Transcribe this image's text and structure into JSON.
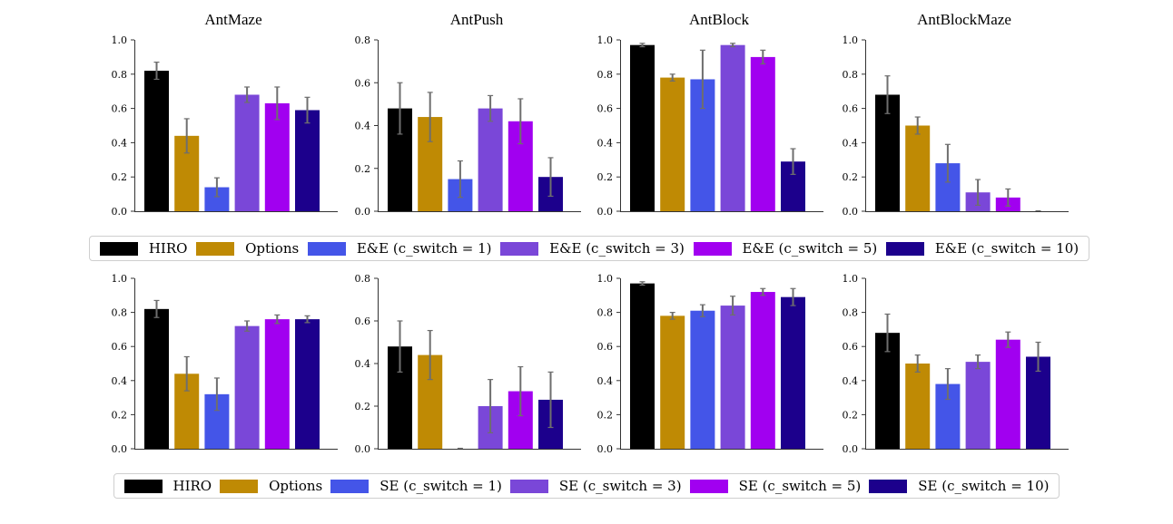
{
  "colors": {
    "HIRO": "#000000",
    "Options": "#bf8a04",
    "c1": "#4455e8",
    "c3": "#7a47d8",
    "c5": "#a100f0",
    "c10": "#1c008c",
    "axis": "#333333",
    "errorbar": "#6e6e6e",
    "legend_border": "#cfcfcf"
  },
  "legends": {
    "top": [
      {
        "label": "HIRO",
        "color_key": "HIRO"
      },
      {
        "label": "Options",
        "color_key": "Options"
      },
      {
        "label": "E&E (c_switch = 1)",
        "color_key": "c1"
      },
      {
        "label": "E&E (c_switch = 3)",
        "color_key": "c3"
      },
      {
        "label": "E&E (c_switch = 5)",
        "color_key": "c5"
      },
      {
        "label": "E&E (c_switch = 10)",
        "color_key": "c10"
      }
    ],
    "bottom": [
      {
        "label": "HIRO",
        "color_key": "HIRO"
      },
      {
        "label": "Options",
        "color_key": "Options"
      },
      {
        "label": "SE (c_switch = 1)",
        "color_key": "c1"
      },
      {
        "label": "SE (c_switch = 3)",
        "color_key": "c3"
      },
      {
        "label": "SE (c_switch = 5)",
        "color_key": "c5"
      },
      {
        "label": "SE (c_switch = 10)",
        "color_key": "c10"
      }
    ]
  },
  "chart_data": [
    {
      "type": "bar",
      "row": "top",
      "title": "AntMaze",
      "ylim": [
        0,
        1.0
      ],
      "yticks": [
        "0.0",
        "0.2",
        "0.4",
        "0.6",
        "0.8",
        "1.0"
      ],
      "series": [
        "HIRO",
        "Options",
        "E&E (c_switch = 1)",
        "E&E (c_switch = 3)",
        "E&E (c_switch = 5)",
        "E&E (c_switch = 10)"
      ],
      "values": [
        0.82,
        0.44,
        0.14,
        0.68,
        0.63,
        0.59
      ],
      "errors": [
        0.05,
        0.1,
        0.055,
        0.045,
        0.095,
        0.075
      ]
    },
    {
      "type": "bar",
      "row": "top",
      "title": "AntPush",
      "ylim": [
        0,
        0.8
      ],
      "yticks": [
        "0.0",
        "0.2",
        "0.4",
        "0.6",
        "0.8"
      ],
      "series": [
        "HIRO",
        "Options",
        "E&E (c_switch = 1)",
        "E&E (c_switch = 3)",
        "E&E (c_switch = 5)",
        "E&E (c_switch = 10)"
      ],
      "values": [
        0.48,
        0.44,
        0.15,
        0.48,
        0.42,
        0.16
      ],
      "errors": [
        0.12,
        0.115,
        0.085,
        0.06,
        0.105,
        0.09
      ]
    },
    {
      "type": "bar",
      "row": "top",
      "title": "AntBlock",
      "ylim": [
        0,
        1.0
      ],
      "yticks": [
        "0.0",
        "0.2",
        "0.4",
        "0.6",
        "0.8",
        "1.0"
      ],
      "series": [
        "HIRO",
        "Options",
        "E&E (c_switch = 1)",
        "E&E (c_switch = 3)",
        "E&E (c_switch = 5)",
        "E&E (c_switch = 10)"
      ],
      "values": [
        0.97,
        0.78,
        0.77,
        0.97,
        0.9,
        0.29
      ],
      "errors": [
        0.01,
        0.02,
        0.17,
        0.01,
        0.04,
        0.075
      ]
    },
    {
      "type": "bar",
      "row": "top",
      "title": "AntBlockMaze",
      "ylim": [
        0,
        1.0
      ],
      "yticks": [
        "0.0",
        "0.2",
        "0.4",
        "0.6",
        "0.8",
        "1.0"
      ],
      "series": [
        "HIRO",
        "Options",
        "E&E (c_switch = 1)",
        "E&E (c_switch = 3)",
        "E&E (c_switch = 5)",
        "E&E (c_switch = 10)"
      ],
      "values": [
        0.68,
        0.5,
        0.28,
        0.11,
        0.08,
        0.0
      ],
      "errors": [
        0.11,
        0.05,
        0.11,
        0.075,
        0.05,
        0.0
      ]
    },
    {
      "type": "bar",
      "row": "bottom",
      "title": "",
      "ylim": [
        0,
        1.0
      ],
      "yticks": [
        "0.0",
        "0.2",
        "0.4",
        "0.6",
        "0.8",
        "1.0"
      ],
      "series": [
        "HIRO",
        "Options",
        "SE (c_switch = 1)",
        "SE (c_switch = 3)",
        "SE (c_switch = 5)",
        "SE (c_switch = 10)"
      ],
      "values": [
        0.82,
        0.44,
        0.32,
        0.72,
        0.76,
        0.76
      ],
      "errors": [
        0.05,
        0.1,
        0.095,
        0.03,
        0.025,
        0.02
      ]
    },
    {
      "type": "bar",
      "row": "bottom",
      "title": "",
      "ylim": [
        0,
        0.8
      ],
      "yticks": [
        "0.0",
        "0.2",
        "0.4",
        "0.6",
        "0.8"
      ],
      "series": [
        "HIRO",
        "Options",
        "SE (c_switch = 1)",
        "SE (c_switch = 3)",
        "SE (c_switch = 5)",
        "SE (c_switch = 10)"
      ],
      "values": [
        0.48,
        0.44,
        0.0,
        0.2,
        0.27,
        0.23
      ],
      "errors": [
        0.12,
        0.115,
        0.0,
        0.125,
        0.115,
        0.13
      ]
    },
    {
      "type": "bar",
      "row": "bottom",
      "title": "",
      "ylim": [
        0,
        1.0
      ],
      "yticks": [
        "0.0",
        "0.2",
        "0.4",
        "0.6",
        "0.8",
        "1.0"
      ],
      "series": [
        "HIRO",
        "Options",
        "SE (c_switch = 1)",
        "SE (c_switch = 3)",
        "SE (c_switch = 5)",
        "SE (c_switch = 10)"
      ],
      "values": [
        0.97,
        0.78,
        0.81,
        0.84,
        0.92,
        0.89
      ],
      "errors": [
        0.01,
        0.02,
        0.035,
        0.055,
        0.02,
        0.05
      ]
    },
    {
      "type": "bar",
      "row": "bottom",
      "title": "",
      "ylim": [
        0,
        1.0
      ],
      "yticks": [
        "0.0",
        "0.2",
        "0.4",
        "0.6",
        "0.8",
        "1.0"
      ],
      "series": [
        "HIRO",
        "Options",
        "SE (c_switch = 1)",
        "SE (c_switch = 3)",
        "SE (c_switch = 5)",
        "SE (c_switch = 10)"
      ],
      "values": [
        0.68,
        0.5,
        0.38,
        0.51,
        0.64,
        0.54
      ],
      "errors": [
        0.11,
        0.05,
        0.09,
        0.04,
        0.045,
        0.085
      ]
    }
  ]
}
